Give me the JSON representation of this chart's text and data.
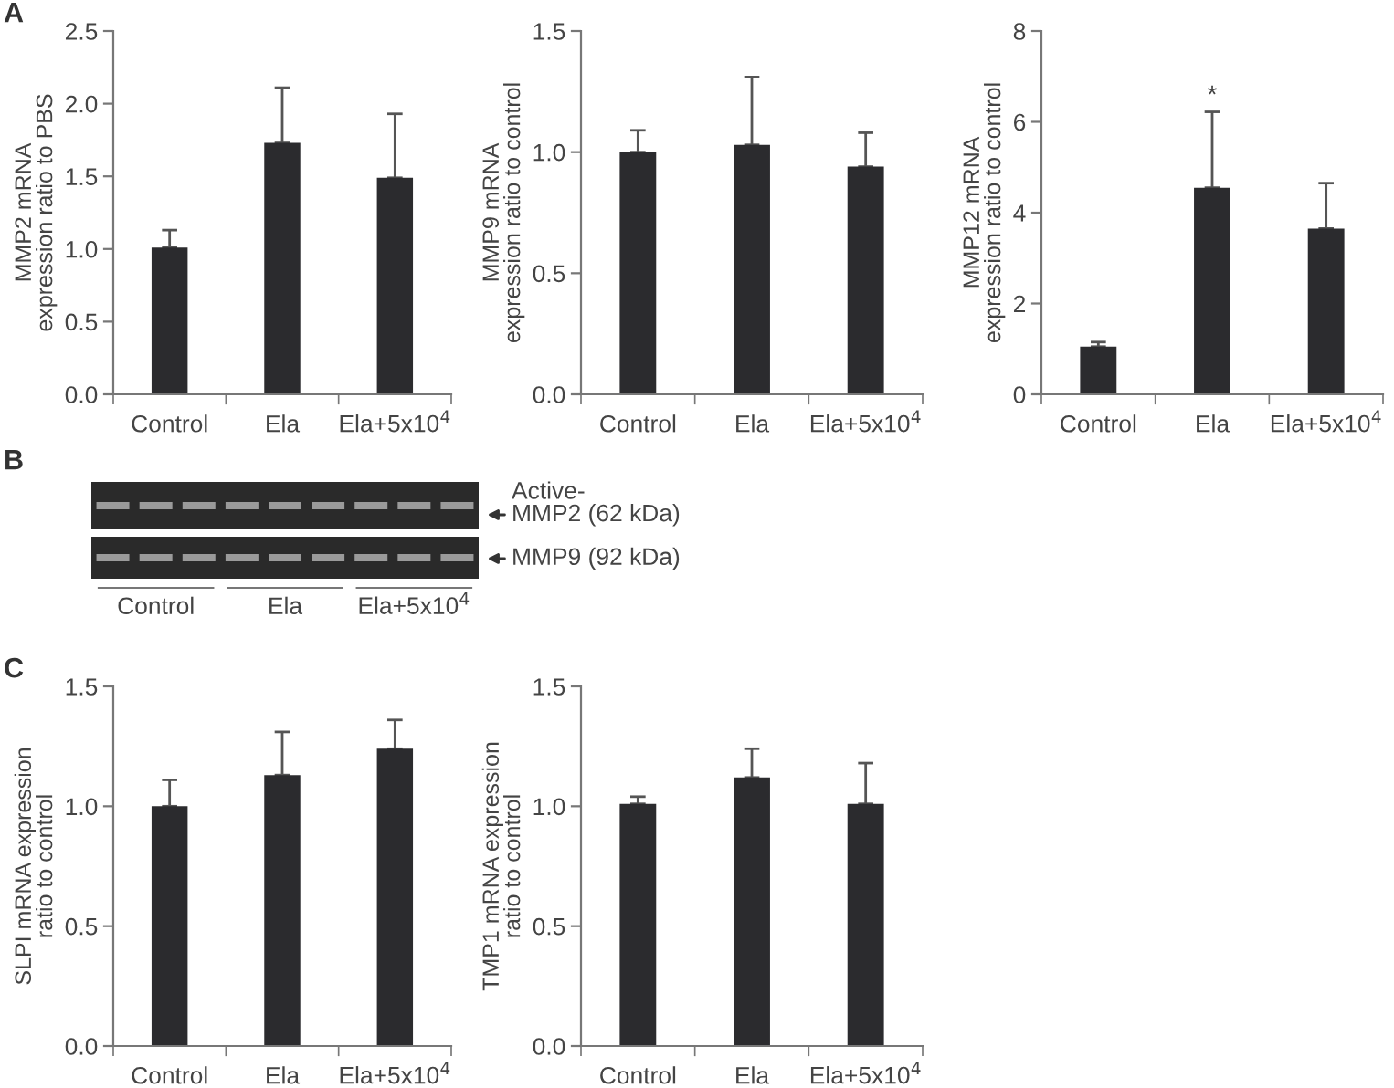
{
  "chart_data": [
    {
      "type": "bar",
      "ylabel": "MMP2 mRNA\nexpression ratio to PBS",
      "categories": [
        "Control",
        "Ela",
        "Ela+5x10$^{4}$"
      ],
      "values": [
        1.01,
        1.73,
        1.49
      ],
      "errors": [
        [
          1.01,
          1.13
        ],
        [
          1.73,
          2.11
        ],
        [
          1.49,
          1.93
        ]
      ],
      "color": "#2b2b2e",
      "ylim": [
        0,
        2.5
      ],
      "yticks": [
        {
          "value": 0,
          "label": "0.0"
        },
        {
          "value": 0.5,
          "label": "0.5"
        },
        {
          "value": 1,
          "label": "1.0"
        },
        {
          "value": 1.5,
          "label": "1.5"
        },
        {
          "value": 2,
          "label": "2.0"
        },
        {
          "value": 2.5,
          "label": "2.5"
        }
      ],
      "annotations": [
        "A"
      ]
    },
    {
      "type": "bar",
      "ylabel": "MMP9 mRNA\nexpression ratio to control",
      "categories": [
        "Control",
        "Ela",
        "Ela+5x10$^{4}$"
      ],
      "values": [
        1.0,
        1.03,
        0.94
      ],
      "errors": [
        [
          1.0,
          1.09
        ],
        [
          1.03,
          1.31
        ],
        [
          0.94,
          1.08
        ]
      ],
      "color": "#2b2b2e",
      "ylim": [
        0,
        1.5
      ],
      "yticks": [
        {
          "value": 0,
          "label": "0.0"
        },
        {
          "value": 0.5,
          "label": "0.5"
        },
        {
          "value": 1,
          "label": "1.0"
        },
        {
          "value": 1.5,
          "label": "1.5"
        }
      ]
    },
    {
      "type": "bar",
      "ylabel": "MMP12 mRNA\nexpression ratio to control",
      "categories": [
        "Control",
        "Ela",
        "Ela+5x10$^{4}$"
      ],
      "values": [
        1.05,
        4.55,
        3.65
      ],
      "errors": [
        [
          1.05,
          1.15
        ],
        [
          4.55,
          6.22
        ],
        [
          3.65,
          4.65
        ]
      ],
      "color": "#2b2b2e",
      "ylim": [
        0,
        8
      ],
      "yticks": [
        0,
        2,
        4,
        6,
        8
      ],
      "annotations": [
        {
          "text": "*",
          "x": "Ela",
          "y": 6.3
        }
      ]
    },
    {
      "type": "other",
      "annotations": [
        "B",
        "Active-\nMMP2 (62 kDa)",
        "MMP9 (92 kDa)",
        "Control",
        "Ela",
        "Ela+5x10$^{4}$"
      ]
    },
    {
      "type": "bar",
      "ylabel": "SLPI mRNA expression\nratio to control",
      "categories": [
        "Control",
        "Ela",
        "Ela+5x10$^{4}$"
      ],
      "values": [
        1.0,
        1.13,
        1.24
      ],
      "errors": [
        [
          1.0,
          1.11
        ],
        [
          1.13,
          1.31
        ],
        [
          1.24,
          1.36
        ]
      ],
      "color": "#2b2b2e",
      "ylim": [
        0,
        1.5
      ],
      "yticks": [
        {
          "value": 0,
          "label": "0.0"
        },
        {
          "value": 0.5,
          "label": "0.5"
        },
        {
          "value": 1,
          "label": "1.0"
        },
        {
          "value": 1.5,
          "label": "1.5"
        }
      ],
      "annotations": [
        "C"
      ]
    },
    {
      "type": "bar",
      "ylabel": "TMP1 mRNA expression\nratio to control",
      "categories": [
        "Control",
        "Ela",
        "Ela+5x10$^{4}$"
      ],
      "values": [
        1.01,
        1.12,
        1.01
      ],
      "errors": [
        [
          1.01,
          1.04
        ],
        [
          1.12,
          1.24
        ],
        [
          1.01,
          1.18
        ]
      ],
      "color": "#2b2b2e",
      "ylim": [
        0,
        1.5
      ],
      "yticks": [
        {
          "value": 0,
          "label": "0.0"
        },
        {
          "value": 0.5,
          "label": "0.5"
        },
        {
          "value": 1,
          "label": "1.0"
        },
        {
          "value": 1.5,
          "label": "1.5"
        }
      ]
    }
  ]
}
